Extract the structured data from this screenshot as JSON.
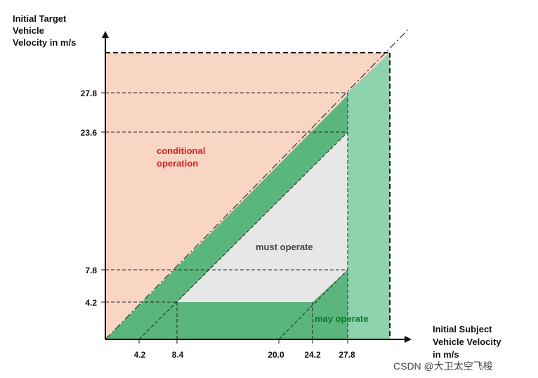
{
  "y_axis_title": [
    "Initial Target",
    "Vehicle",
    "Velocity in m/s"
  ],
  "x_axis_title": [
    "Initial Subject",
    "Vehicle Velocity",
    "in m/s"
  ],
  "y_ticks": [
    "27.8",
    "23.6",
    "7.8",
    "4.2"
  ],
  "x_ticks": [
    "4.2",
    "8.4",
    "20.0",
    "24.2",
    "27.8"
  ],
  "regions": {
    "conditional": [
      "conditional",
      "operation"
    ],
    "must": "must operate",
    "may": "may operate"
  },
  "watermark": "CSDN @大卫太空飞梭",
  "colors": {
    "conditional": "#f9d5c4",
    "may": "#5bb67d",
    "may_light": "#8ed3ad",
    "must": "#e7e7e7",
    "conditional_text": "#d52020",
    "must_text": "#444444",
    "may_text": "#0a7a2a"
  }
}
